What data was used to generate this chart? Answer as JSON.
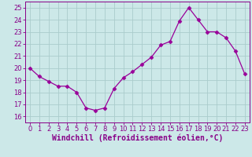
{
  "x": [
    0,
    1,
    2,
    3,
    4,
    5,
    6,
    7,
    8,
    9,
    10,
    11,
    12,
    13,
    14,
    15,
    16,
    17,
    18,
    19,
    20,
    21,
    22,
    23
  ],
  "y": [
    20.0,
    19.3,
    18.9,
    18.5,
    18.5,
    18.0,
    16.7,
    16.5,
    16.7,
    18.3,
    19.2,
    19.7,
    20.3,
    20.9,
    21.9,
    22.2,
    23.9,
    25.0,
    24.0,
    23.0,
    23.0,
    22.5,
    21.4,
    19.5
  ],
  "line_color": "#990099",
  "marker": "D",
  "marker_size": 2.5,
  "bg_color": "#cce8e8",
  "grid_color": "#aacccc",
  "xlabel": "Windchill (Refroidissement éolien,°C)",
  "xlim": [
    -0.5,
    23.5
  ],
  "ylim": [
    15.5,
    25.5
  ],
  "yticks": [
    16,
    17,
    18,
    19,
    20,
    21,
    22,
    23,
    24,
    25
  ],
  "xticks": [
    0,
    1,
    2,
    3,
    4,
    5,
    6,
    7,
    8,
    9,
    10,
    11,
    12,
    13,
    14,
    15,
    16,
    17,
    18,
    19,
    20,
    21,
    22,
    23
  ],
  "tick_label_fontsize": 6.0,
  "xlabel_fontsize": 7.0,
  "spine_color": "#880088"
}
